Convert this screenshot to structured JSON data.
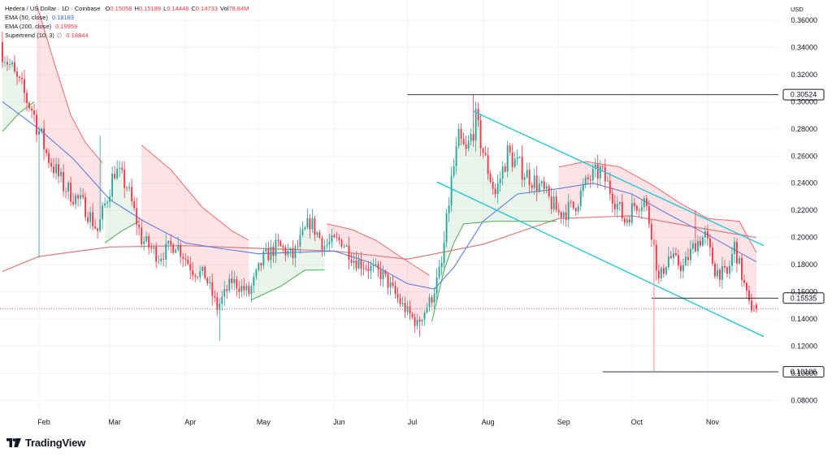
{
  "header": {
    "pair": "Hedera / US Dollar · 1D · Coinbase",
    "ohlc": [
      {
        "k": "O",
        "v": "0.15058"
      },
      {
        "k": "H",
        "v": "0.15189"
      },
      {
        "k": "L",
        "v": "0.14448"
      },
      {
        "k": "C",
        "v": "0.14733"
      },
      {
        "k": "Vol",
        "v": "78.84M"
      }
    ],
    "indicators": [
      {
        "label": "EMA (50, close)",
        "value": "0.18183",
        "color": "#2962ff"
      },
      {
        "label": "EMA (200, close)",
        "value": "0.19959",
        "color": "#f23645"
      },
      {
        "label": "Supertrend (10, 3)",
        "value": "0.18844",
        "color": "#f23645"
      }
    ]
  },
  "currency": "USD",
  "brand": "TradingView",
  "colors": {
    "up": "#26a69a",
    "down": "#f23645",
    "ema50": "#5b7de8",
    "ema200": "#e0787f",
    "st_up": "#4caf50",
    "st_down": "#f06b6b",
    "channel": "#26c6da",
    "level": "#131722"
  },
  "chart_data": {
    "type": "candlestick",
    "ylim": [
      0.07,
      0.375
    ],
    "y_ticks": [
      "0.36000",
      "0.34000",
      "0.32000",
      "0.30000",
      "0.28000",
      "0.26000",
      "0.24000",
      "0.22000",
      "0.20000",
      "0.18000",
      "0.16000",
      "0.14000",
      "0.12000",
      "0.10000",
      "0.08000"
    ],
    "x_ticks": [
      {
        "label": "Feb",
        "date": "2024-02-01"
      },
      {
        "label": "Mar",
        "date": "2024-03-01"
      },
      {
        "label": "Apr",
        "date": "2024-04-01"
      },
      {
        "label": "May",
        "date": "2024-05-01"
      },
      {
        "label": "Jun",
        "date": "2024-06-01"
      },
      {
        "label": "Jul",
        "date": "2024-07-01"
      },
      {
        "label": "Aug",
        "date": "2024-08-01"
      },
      {
        "label": "Sep",
        "date": "2024-09-01"
      },
      {
        "label": "Oct",
        "date": "2024-10-01"
      },
      {
        "label": "Nov",
        "date": "2024-11-01"
      }
    ],
    "price_levels": [
      {
        "label": "0.30524",
        "value": 0.30524,
        "from": "2024-07-01"
      },
      {
        "label": "0.15535",
        "value": 0.15535,
        "from": "2024-10-09"
      },
      {
        "label": "0.10106",
        "value": 0.10106,
        "from": "2024-09-19"
      }
    ],
    "current_price": 0.14733,
    "channel": {
      "upper": [
        {
          "date": "2024-07-28",
          "value": 0.293
        },
        {
          "date": "2024-11-24",
          "value": 0.194
        }
      ],
      "lower": [
        {
          "date": "2024-07-13",
          "value": 0.241
        },
        {
          "date": "2024-11-24",
          "value": 0.127
        }
      ]
    },
    "key_points": [
      {
        "date": "2024-01-17",
        "close": 0.34
      },
      {
        "date": "2024-01-22",
        "close": 0.318
      },
      {
        "date": "2024-01-29",
        "close": 0.295
      },
      {
        "date": "2024-02-04",
        "close": 0.262
      },
      {
        "date": "2024-02-11",
        "close": 0.238
      },
      {
        "date": "2024-02-20",
        "close": 0.222
      },
      {
        "date": "2024-02-25",
        "close": 0.205
      },
      {
        "date": "2024-03-03",
        "close": 0.25
      },
      {
        "date": "2024-03-08",
        "close": 0.238
      },
      {
        "date": "2024-03-14",
        "close": 0.199
      },
      {
        "date": "2024-03-21",
        "close": 0.186
      },
      {
        "date": "2024-03-28",
        "close": 0.196
      },
      {
        "date": "2024-04-04",
        "close": 0.176
      },
      {
        "date": "2024-04-09",
        "close": 0.172
      },
      {
        "date": "2024-04-14",
        "close": 0.148
      },
      {
        "date": "2024-04-20",
        "close": 0.168
      },
      {
        "date": "2024-04-27",
        "close": 0.159
      },
      {
        "date": "2024-05-03",
        "close": 0.185
      },
      {
        "date": "2024-05-09",
        "close": 0.194
      },
      {
        "date": "2024-05-15",
        "close": 0.186
      },
      {
        "date": "2024-05-22",
        "close": 0.212
      },
      {
        "date": "2024-05-28",
        "close": 0.194
      },
      {
        "date": "2024-06-04",
        "close": 0.198
      },
      {
        "date": "2024-06-09",
        "close": 0.184
      },
      {
        "date": "2024-06-15",
        "close": 0.178
      },
      {
        "date": "2024-06-21",
        "close": 0.172
      },
      {
        "date": "2024-06-28",
        "close": 0.152
      },
      {
        "date": "2024-07-05",
        "close": 0.136
      },
      {
        "date": "2024-07-11",
        "close": 0.156
      },
      {
        "date": "2024-07-15",
        "close": 0.18
      },
      {
        "date": "2024-07-19",
        "close": 0.242
      },
      {
        "date": "2024-07-22",
        "close": 0.272
      },
      {
        "date": "2024-07-25",
        "close": 0.262
      },
      {
        "date": "2024-07-29",
        "close": 0.286
      },
      {
        "date": "2024-08-02",
        "close": 0.256
      },
      {
        "date": "2024-08-06",
        "close": 0.232
      },
      {
        "date": "2024-08-11",
        "close": 0.262
      },
      {
        "date": "2024-08-18",
        "close": 0.248
      },
      {
        "date": "2024-08-24",
        "close": 0.238
      },
      {
        "date": "2024-09-01",
        "close": 0.218
      },
      {
        "date": "2024-09-07",
        "close": 0.222
      },
      {
        "date": "2024-09-13",
        "close": 0.242
      },
      {
        "date": "2024-09-18",
        "close": 0.249
      },
      {
        "date": "2024-09-23",
        "close": 0.232
      },
      {
        "date": "2024-09-28",
        "close": 0.212
      },
      {
        "date": "2024-10-02",
        "close": 0.224
      },
      {
        "date": "2024-10-06",
        "close": 0.228
      },
      {
        "date": "2024-10-09",
        "close": 0.205
      },
      {
        "date": "2024-10-12",
        "close": 0.168
      },
      {
        "date": "2024-10-16",
        "close": 0.186
      },
      {
        "date": "2024-10-22",
        "close": 0.178
      },
      {
        "date": "2024-10-27",
        "close": 0.196
      },
      {
        "date": "2024-10-31",
        "close": 0.201
      },
      {
        "date": "2024-11-04",
        "close": 0.176
      },
      {
        "date": "2024-11-09",
        "close": 0.172
      },
      {
        "date": "2024-11-12",
        "close": 0.194
      },
      {
        "date": "2024-11-15",
        "close": 0.172
      },
      {
        "date": "2024-11-18",
        "close": 0.15
      },
      {
        "date": "2024-11-21",
        "close": 0.147
      }
    ],
    "ema50": [
      {
        "date": "2024-01-17",
        "value": 0.3
      },
      {
        "date": "2024-02-01",
        "value": 0.28
      },
      {
        "date": "2024-02-15",
        "value": 0.258
      },
      {
        "date": "2024-03-01",
        "value": 0.228
      },
      {
        "date": "2024-03-15",
        "value": 0.212
      },
      {
        "date": "2024-04-01",
        "value": 0.196
      },
      {
        "date": "2024-04-15",
        "value": 0.192
      },
      {
        "date": "2024-05-01",
        "value": 0.188
      },
      {
        "date": "2024-05-15",
        "value": 0.189
      },
      {
        "date": "2024-06-01",
        "value": 0.19
      },
      {
        "date": "2024-06-15",
        "value": 0.182
      },
      {
        "date": "2024-07-01",
        "value": 0.166
      },
      {
        "date": "2024-07-12",
        "value": 0.162
      },
      {
        "date": "2024-07-20",
        "value": 0.178
      },
      {
        "date": "2024-08-01",
        "value": 0.212
      },
      {
        "date": "2024-08-15",
        "value": 0.232
      },
      {
        "date": "2024-09-01",
        "value": 0.236
      },
      {
        "date": "2024-09-15",
        "value": 0.24
      },
      {
        "date": "2024-10-01",
        "value": 0.232
      },
      {
        "date": "2024-10-15",
        "value": 0.218
      },
      {
        "date": "2024-11-01",
        "value": 0.202
      },
      {
        "date": "2024-11-21",
        "value": 0.182
      }
    ],
    "ema200": [
      {
        "date": "2024-01-17",
        "value": 0.175
      },
      {
        "date": "2024-02-01",
        "value": 0.186
      },
      {
        "date": "2024-03-01",
        "value": 0.193
      },
      {
        "date": "2024-04-01",
        "value": 0.194
      },
      {
        "date": "2024-05-01",
        "value": 0.192
      },
      {
        "date": "2024-06-01",
        "value": 0.19
      },
      {
        "date": "2024-07-01",
        "value": 0.184
      },
      {
        "date": "2024-08-01",
        "value": 0.195
      },
      {
        "date": "2024-09-01",
        "value": 0.214
      },
      {
        "date": "2024-10-01",
        "value": 0.216
      },
      {
        "date": "2024-11-01",
        "value": 0.206
      },
      {
        "date": "2024-11-21",
        "value": 0.2
      }
    ],
    "supertrend": [
      {
        "date": "2024-01-17",
        "value": 0.278,
        "trend": "up"
      },
      {
        "date": "2024-01-24",
        "value": 0.292,
        "trend": "up"
      },
      {
        "date": "2024-01-30",
        "value": 0.3,
        "trend": "up"
      },
      {
        "date": "2024-01-31",
        "value": 0.372,
        "trend": "down"
      },
      {
        "date": "2024-02-07",
        "value": 0.33,
        "trend": "down"
      },
      {
        "date": "2024-02-14",
        "value": 0.29,
        "trend": "down"
      },
      {
        "date": "2024-02-20",
        "value": 0.27,
        "trend": "down"
      },
      {
        "date": "2024-02-27",
        "value": 0.255,
        "trend": "down"
      },
      {
        "date": "2024-02-28",
        "value": 0.196,
        "trend": "up"
      },
      {
        "date": "2024-03-06",
        "value": 0.205,
        "trend": "up"
      },
      {
        "date": "2024-03-13",
        "value": 0.212,
        "trend": "up"
      },
      {
        "date": "2024-03-14",
        "value": 0.268,
        "trend": "down"
      },
      {
        "date": "2024-03-26",
        "value": 0.25,
        "trend": "down"
      },
      {
        "date": "2024-04-08",
        "value": 0.222,
        "trend": "down"
      },
      {
        "date": "2024-04-20",
        "value": 0.205,
        "trend": "down"
      },
      {
        "date": "2024-04-27",
        "value": 0.198,
        "trend": "down"
      },
      {
        "date": "2024-04-28",
        "value": 0.154,
        "trend": "up"
      },
      {
        "date": "2024-05-10",
        "value": 0.164,
        "trend": "up"
      },
      {
        "date": "2024-05-20",
        "value": 0.176,
        "trend": "up"
      },
      {
        "date": "2024-05-28",
        "value": 0.176,
        "trend": "up"
      },
      {
        "date": "2024-05-29",
        "value": 0.21,
        "trend": "down"
      },
      {
        "date": "2024-06-08",
        "value": 0.206,
        "trend": "down"
      },
      {
        "date": "2024-06-18",
        "value": 0.198,
        "trend": "down"
      },
      {
        "date": "2024-06-28",
        "value": 0.186,
        "trend": "down"
      },
      {
        "date": "2024-07-10",
        "value": 0.172,
        "trend": "down"
      },
      {
        "date": "2024-07-11",
        "value": 0.138,
        "trend": "up"
      },
      {
        "date": "2024-07-16",
        "value": 0.176,
        "trend": "up"
      },
      {
        "date": "2024-07-20",
        "value": 0.196,
        "trend": "up"
      },
      {
        "date": "2024-07-24",
        "value": 0.21,
        "trend": "up"
      },
      {
        "date": "2024-08-05",
        "value": 0.212,
        "trend": "up"
      },
      {
        "date": "2024-08-20",
        "value": 0.212,
        "trend": "up"
      },
      {
        "date": "2024-08-31",
        "value": 0.212,
        "trend": "up"
      },
      {
        "date": "2024-09-01",
        "value": 0.252,
        "trend": "down"
      },
      {
        "date": "2024-09-12",
        "value": 0.256,
        "trend": "down"
      },
      {
        "date": "2024-09-26",
        "value": 0.252,
        "trend": "down"
      },
      {
        "date": "2024-10-10",
        "value": 0.238,
        "trend": "down"
      },
      {
        "date": "2024-10-20",
        "value": 0.226,
        "trend": "down"
      },
      {
        "date": "2024-11-01",
        "value": 0.214,
        "trend": "down"
      },
      {
        "date": "2024-11-14",
        "value": 0.212,
        "trend": "down"
      },
      {
        "date": "2024-11-21",
        "value": 0.189,
        "trend": "down"
      }
    ]
  }
}
